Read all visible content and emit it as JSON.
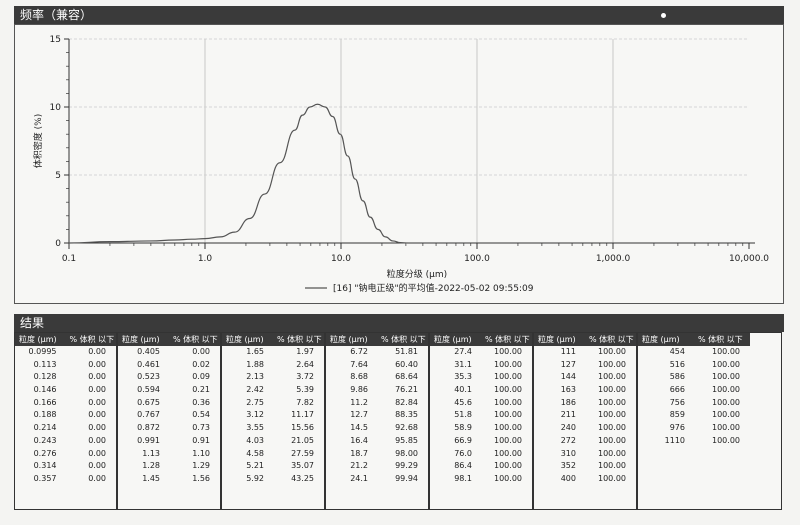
{
  "freq_header": "频率（兼容）",
  "results_header": "结果",
  "chart_data": {
    "type": "line",
    "xscale": "log",
    "xlim": [
      0.1,
      10000
    ],
    "ylim": [
      0,
      15
    ],
    "yticks": [
      0,
      5,
      10,
      15
    ],
    "ytick_labels": [
      "0",
      "5",
      "10",
      "15"
    ],
    "xticks": [
      0.1,
      1,
      10,
      100,
      1000,
      10000
    ],
    "xtick_labels": [
      "0.1",
      "1.0",
      "10.0",
      "100.0",
      "1,000.0",
      "10,000.0"
    ],
    "xlabel": "粒度分级 (μm)",
    "ylabel": "体积密度 (%)",
    "legend": "[16] \"钠电正级\"的平均值-2022-05-02 09:55:09",
    "grid": true,
    "series": [
      {
        "name": "[16] \"钠电正级\"的平均值-2022-05-02 09:55:09",
        "x": [
          0.1,
          0.2,
          0.4,
          0.6,
          0.8,
          1.0,
          1.3,
          1.65,
          2.13,
          2.75,
          3.55,
          4.58,
          5.21,
          5.92,
          6.72,
          7.64,
          8.68,
          9.86,
          11.2,
          12.7,
          14.5,
          16.4,
          18.7,
          21.2,
          24.1,
          27.4,
          31.1
        ],
        "y": [
          0.0,
          0.1,
          0.15,
          0.22,
          0.28,
          0.32,
          0.45,
          0.8,
          1.8,
          3.6,
          5.9,
          8.3,
          9.4,
          10.0,
          10.2,
          10.0,
          9.3,
          8.0,
          6.4,
          4.7,
          3.1,
          1.9,
          1.0,
          0.45,
          0.15,
          0.03,
          0.0
        ]
      }
    ]
  },
  "table": {
    "col_size": "粒度 (μm)",
    "col_pct": "% 体积 以下",
    "groups": [
      [
        [
          "0.0995",
          "0.00"
        ],
        [
          "0.113",
          "0.00"
        ],
        [
          "0.128",
          "0.00"
        ],
        [
          "0.146",
          "0.00"
        ],
        [
          "0.166",
          "0.00"
        ],
        [
          "0.188",
          "0.00"
        ],
        [
          "0.214",
          "0.00"
        ],
        [
          "0.243",
          "0.00"
        ],
        [
          "0.276",
          "0.00"
        ],
        [
          "0.314",
          "0.00"
        ],
        [
          "0.357",
          "0.00"
        ]
      ],
      [
        [
          "0.405",
          "0.00"
        ],
        [
          "0.461",
          "0.02"
        ],
        [
          "0.523",
          "0.09"
        ],
        [
          "0.594",
          "0.21"
        ],
        [
          "0.675",
          "0.36"
        ],
        [
          "0.767",
          "0.54"
        ],
        [
          "0.872",
          "0.73"
        ],
        [
          "0.991",
          "0.91"
        ],
        [
          "1.13",
          "1.10"
        ],
        [
          "1.28",
          "1.29"
        ],
        [
          "1.45",
          "1.56"
        ]
      ],
      [
        [
          "1.65",
          "1.97"
        ],
        [
          "1.88",
          "2.64"
        ],
        [
          "2.13",
          "3.72"
        ],
        [
          "2.42",
          "5.39"
        ],
        [
          "2.75",
          "7.82"
        ],
        [
          "3.12",
          "11.17"
        ],
        [
          "3.55",
          "15.56"
        ],
        [
          "4.03",
          "21.05"
        ],
        [
          "4.58",
          "27.59"
        ],
        [
          "5.21",
          "35.07"
        ],
        [
          "5.92",
          "43.25"
        ]
      ],
      [
        [
          "6.72",
          "51.81"
        ],
        [
          "7.64",
          "60.40"
        ],
        [
          "8.68",
          "68.64"
        ],
        [
          "9.86",
          "76.21"
        ],
        [
          "11.2",
          "82.84"
        ],
        [
          "12.7",
          "88.35"
        ],
        [
          "14.5",
          "92.68"
        ],
        [
          "16.4",
          "95.85"
        ],
        [
          "18.7",
          "98.00"
        ],
        [
          "21.2",
          "99.29"
        ],
        [
          "24.1",
          "99.94"
        ]
      ],
      [
        [
          "27.4",
          "100.00"
        ],
        [
          "31.1",
          "100.00"
        ],
        [
          "35.3",
          "100.00"
        ],
        [
          "40.1",
          "100.00"
        ],
        [
          "45.6",
          "100.00"
        ],
        [
          "51.8",
          "100.00"
        ],
        [
          "58.9",
          "100.00"
        ],
        [
          "66.9",
          "100.00"
        ],
        [
          "76.0",
          "100.00"
        ],
        [
          "86.4",
          "100.00"
        ],
        [
          "98.1",
          "100.00"
        ]
      ],
      [
        [
          "111",
          "100.00"
        ],
        [
          "127",
          "100.00"
        ],
        [
          "144",
          "100.00"
        ],
        [
          "163",
          "100.00"
        ],
        [
          "186",
          "100.00"
        ],
        [
          "211",
          "100.00"
        ],
        [
          "240",
          "100.00"
        ],
        [
          "272",
          "100.00"
        ],
        [
          "310",
          "100.00"
        ],
        [
          "352",
          "100.00"
        ],
        [
          "400",
          "100.00"
        ]
      ],
      [
        [
          "454",
          "100.00"
        ],
        [
          "516",
          "100.00"
        ],
        [
          "586",
          "100.00"
        ],
        [
          "666",
          "100.00"
        ],
        [
          "756",
          "100.00"
        ],
        [
          "859",
          "100.00"
        ],
        [
          "976",
          "100.00"
        ],
        [
          "1110",
          "100.00"
        ]
      ]
    ]
  }
}
